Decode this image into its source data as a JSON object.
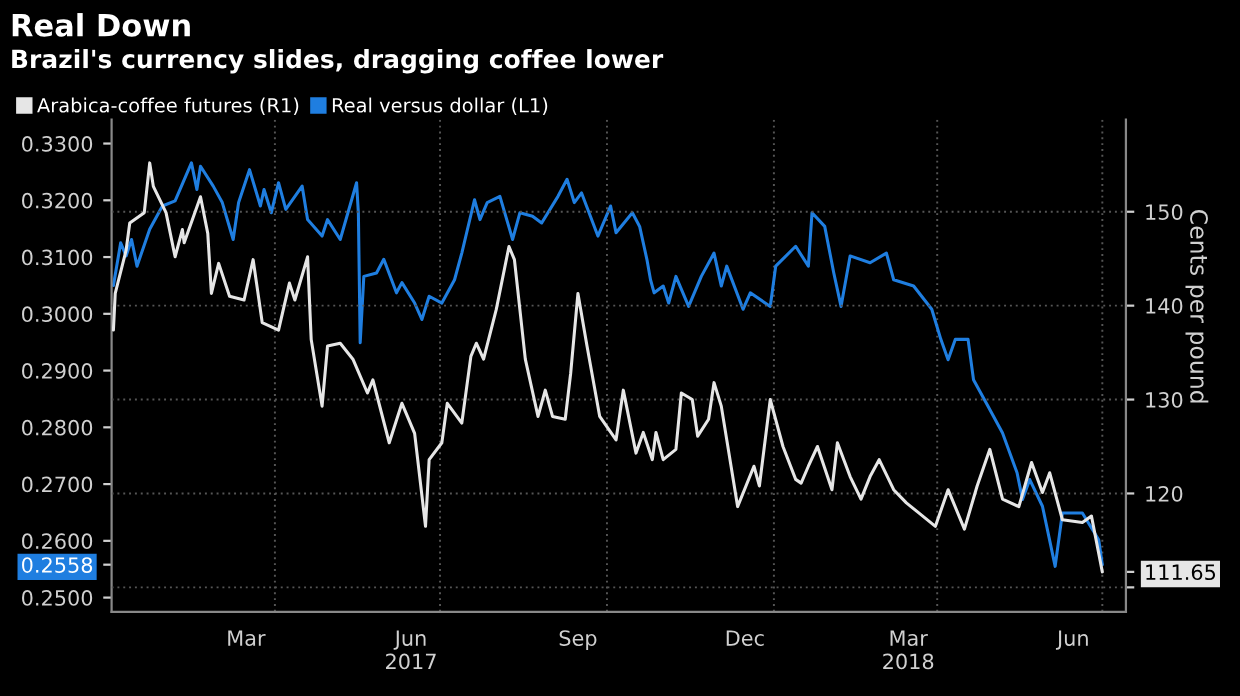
{
  "chart_data": {
    "type": "line",
    "title": "Real Down",
    "subtitle": "Brazil's currency slides, dragging coffee lower",
    "y2label": "Cents per pound",
    "legend": "top left",
    "grid": true,
    "line_style": "solid",
    "xlim": [
      "2017-01-01",
      "2018-07-14"
    ],
    "xticks": [
      {
        "value": "2017-03-16",
        "label": "Mar"
      },
      {
        "value": "2017-04-01",
        "label": null
      },
      {
        "value": "2017-06-15",
        "label": "Jun\n2017"
      },
      {
        "value": "2017-07-01",
        "label": null
      },
      {
        "value": "2017-09-15",
        "label": "Sep"
      },
      {
        "value": "2017-10-01",
        "label": null
      },
      {
        "value": "2017-12-16",
        "label": "Dec"
      },
      {
        "value": "2018-01-01",
        "label": null
      },
      {
        "value": "2018-03-16",
        "label": "Mar\n2018"
      },
      {
        "value": "2018-04-01",
        "label": null
      },
      {
        "value": "2018-06-15",
        "label": "Jun"
      },
      {
        "value": "2018-07-01",
        "label": null
      }
    ],
    "ylim": [
      0.2475,
      0.3342
    ],
    "yticks": [
      {
        "value": 0.25,
        "label": "0.2500"
      },
      {
        "value": 0.26,
        "label": "0.2600"
      },
      {
        "value": 0.27,
        "label": "0.2700"
      },
      {
        "value": 0.28,
        "label": "0.2800"
      },
      {
        "value": 0.29,
        "label": "0.2900"
      },
      {
        "value": 0.3,
        "label": "0.3000"
      },
      {
        "value": 0.31,
        "label": "0.3100"
      },
      {
        "value": 0.32,
        "label": "0.3200"
      },
      {
        "value": 0.33,
        "label": "0.3300"
      },
      {
        "value": 0.2558,
        "label": "0.2558"
      }
    ],
    "y2lim": [
      107.4,
      159.8
    ],
    "y2ticks": [
      {
        "value": 110,
        "label": null
      },
      120,
      130,
      140,
      150,
      {
        "value": 111.65,
        "label": "111.65"
      }
    ],
    "series": [
      {
        "name": "Real versus dollar (L1)",
        "color": "#1f7ee0",
        "axis": "y",
        "x": [
          "2017-01-02",
          "2017-01-06",
          "2017-01-09",
          "2017-01-12",
          "2017-01-15",
          "2017-01-22",
          "2017-01-29",
          "2017-02-05",
          "2017-02-14",
          "2017-02-17",
          "2017-02-19",
          "2017-02-26",
          "2017-03-03",
          "2017-03-09",
          "2017-03-12",
          "2017-03-18",
          "2017-03-24",
          "2017-03-26",
          "2017-03-30",
          "2017-04-03",
          "2017-04-07",
          "2017-04-16",
          "2017-04-19",
          "2017-04-27",
          "2017-04-30",
          "2017-05-07",
          "2017-05-16",
          "2017-05-17",
          "2017-05-18",
          "2017-05-20",
          "2017-05-27",
          "2017-05-31",
          "2017-06-07",
          "2017-06-10",
          "2017-06-17",
          "2017-06-21",
          "2017-06-25",
          "2017-07-02",
          "2017-07-09",
          "2017-07-13",
          "2017-07-20",
          "2017-07-23",
          "2017-07-27",
          "2017-08-03",
          "2017-08-10",
          "2017-08-14",
          "2017-08-21",
          "2017-08-26",
          "2017-09-04",
          "2017-09-09",
          "2017-09-13",
          "2017-09-17",
          "2017-09-26",
          "2017-10-03",
          "2017-10-06",
          "2017-10-15",
          "2017-10-19",
          "2017-10-23",
          "2017-10-25",
          "2017-10-27",
          "2017-11-01",
          "2017-11-04",
          "2017-11-08",
          "2017-11-15",
          "2017-11-22",
          "2017-11-29",
          "2017-12-03",
          "2017-12-06",
          "2017-12-15",
          "2017-12-19",
          "2017-12-30",
          "2018-01-02",
          "2018-01-13",
          "2018-01-20",
          "2018-01-22",
          "2018-01-29",
          "2018-02-03",
          "2018-02-07",
          "2018-02-12",
          "2018-02-23",
          "2018-03-04",
          "2018-03-08",
          "2018-03-19",
          "2018-03-29",
          "2018-04-03",
          "2018-04-07",
          "2018-04-11",
          "2018-04-18",
          "2018-04-21",
          "2018-04-29",
          "2018-05-07",
          "2018-05-15",
          "2018-05-18",
          "2018-05-22",
          "2018-05-29",
          "2018-06-05",
          "2018-06-09",
          "2018-06-20",
          "2018-06-29",
          "2018-07-01"
        ],
        "values": [
          0.305,
          0.3125,
          0.3102,
          0.3131,
          0.3084,
          0.3149,
          0.319,
          0.3199,
          0.3266,
          0.3219,
          0.326,
          0.3225,
          0.3196,
          0.3131,
          0.3196,
          0.3254,
          0.319,
          0.3219,
          0.3178,
          0.3231,
          0.3184,
          0.3225,
          0.3166,
          0.3137,
          0.3166,
          0.3131,
          0.3231,
          0.3178,
          0.2949,
          0.3066,
          0.3072,
          0.3096,
          0.3037,
          0.3055,
          0.3019,
          0.299,
          0.3031,
          0.3019,
          0.306,
          0.3107,
          0.3201,
          0.3166,
          0.3196,
          0.3207,
          0.3131,
          0.3178,
          0.3172,
          0.316,
          0.3207,
          0.3237,
          0.3196,
          0.3213,
          0.3137,
          0.319,
          0.3143,
          0.3178,
          0.3154,
          0.3096,
          0.306,
          0.3037,
          0.3049,
          0.3019,
          0.3066,
          0.3013,
          0.3066,
          0.3107,
          0.3049,
          0.3084,
          0.3008,
          0.3037,
          0.3013,
          0.3084,
          0.3119,
          0.3084,
          0.3178,
          0.3154,
          0.3072,
          0.3013,
          0.3102,
          0.309,
          0.3107,
          0.306,
          0.3049,
          0.3008,
          0.2955,
          0.2919,
          0.2955,
          0.2955,
          0.2884,
          0.2837,
          0.279,
          0.272,
          0.2673,
          0.2708,
          0.2661,
          0.2555,
          0.2649,
          0.2649,
          0.2602,
          0.2558
        ]
      },
      {
        "name": "Arabica-coffee futures (R1)",
        "color": "#e6e6e6",
        "axis": "y2",
        "x": [
          "2017-01-02",
          "2017-01-03",
          "2017-01-09",
          "2017-01-11",
          "2017-01-19",
          "2017-01-22",
          "2017-01-24",
          "2017-01-31",
          "2017-02-05",
          "2017-02-09",
          "2017-02-10",
          "2017-02-19",
          "2017-02-23",
          "2017-02-25",
          "2017-03-01",
          "2017-03-07",
          "2017-03-15",
          "2017-03-20",
          "2017-03-25",
          "2017-04-03",
          "2017-04-09",
          "2017-04-12",
          "2017-04-19",
          "2017-04-21",
          "2017-04-27",
          "2017-04-30",
          "2017-05-07",
          "2017-05-14",
          "2017-05-22",
          "2017-05-25",
          "2017-06-03",
          "2017-06-10",
          "2017-06-17",
          "2017-06-23",
          "2017-06-25",
          "2017-07-02",
          "2017-07-05",
          "2017-07-13",
          "2017-07-18",
          "2017-07-21",
          "2017-07-25",
          "2017-08-01",
          "2017-08-08",
          "2017-08-11",
          "2017-08-17",
          "2017-08-24",
          "2017-08-28",
          "2017-09-01",
          "2017-09-08",
          "2017-09-11",
          "2017-09-15",
          "2017-09-20",
          "2017-09-27",
          "2017-10-06",
          "2017-10-10",
          "2017-10-17",
          "2017-10-21",
          "2017-10-26",
          "2017-10-28",
          "2017-11-01",
          "2017-11-08",
          "2017-11-11",
          "2017-11-17",
          "2017-11-20",
          "2017-11-26",
          "2017-11-29",
          "2017-12-03",
          "2017-12-12",
          "2017-12-21",
          "2017-12-24",
          "2017-12-30",
          "2018-01-06",
          "2018-01-13",
          "2018-01-16",
          "2018-01-20",
          "2018-01-25",
          "2018-02-02",
          "2018-02-05",
          "2018-02-12",
          "2018-02-18",
          "2018-02-23",
          "2018-02-28",
          "2018-03-08",
          "2018-03-15",
          "2018-03-22",
          "2018-03-31",
          "2018-04-07",
          "2018-04-16",
          "2018-04-23",
          "2018-04-30",
          "2018-05-07",
          "2018-05-16",
          "2018-05-23",
          "2018-05-29",
          "2018-06-02",
          "2018-06-09",
          "2018-06-20",
          "2018-06-25",
          "2018-07-01"
        ],
        "values": [
          137.4,
          141.3,
          145.9,
          148.8,
          149.9,
          155.2,
          152.7,
          149.9,
          145.2,
          148.1,
          146.7,
          151.6,
          147.7,
          141.3,
          144.5,
          141.0,
          140.6,
          144.9,
          138.2,
          137.4,
          142.4,
          140.6,
          145.2,
          136.4,
          129.3,
          135.7,
          136.0,
          134.3,
          130.7,
          132.1,
          125.4,
          129.6,
          126.4,
          116.5,
          123.6,
          125.4,
          129.6,
          127.5,
          134.6,
          136.0,
          134.3,
          139.6,
          146.3,
          144.9,
          134.3,
          128.2,
          131.0,
          128.2,
          127.9,
          132.8,
          141.3,
          135.7,
          128.2,
          125.7,
          131.0,
          124.3,
          126.5,
          123.6,
          126.5,
          123.6,
          124.7,
          130.7,
          130.0,
          126.1,
          127.9,
          131.8,
          129.3,
          118.6,
          122.9,
          120.8,
          130.0,
          125.0,
          121.5,
          121.1,
          122.9,
          125.0,
          120.4,
          125.4,
          121.8,
          119.4,
          121.8,
          123.6,
          120.4,
          119.0,
          117.9,
          116.5,
          120.4,
          116.2,
          120.8,
          124.7,
          119.4,
          118.6,
          123.3,
          120.1,
          122.2,
          117.2,
          116.9,
          117.6,
          111.65
        ]
      }
    ]
  }
}
